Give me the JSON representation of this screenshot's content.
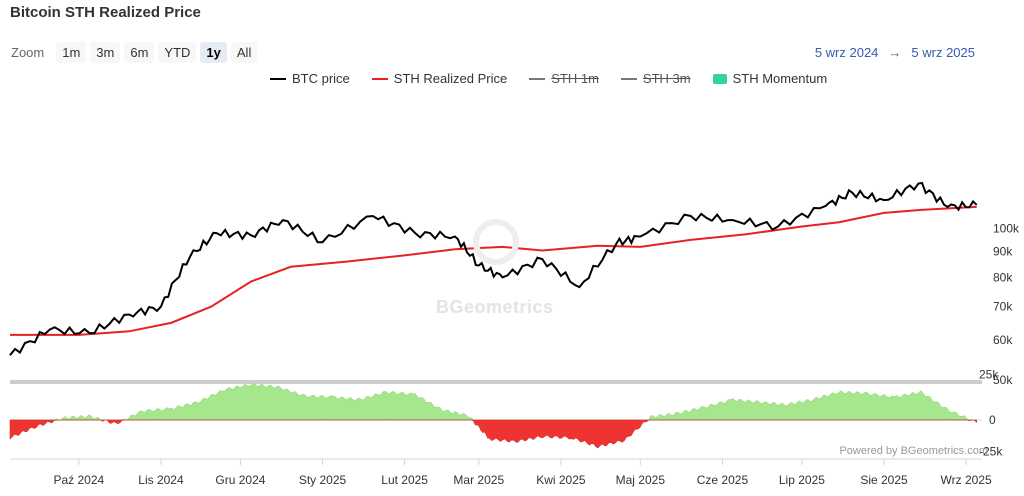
{
  "title": "Bitcoin STH Realized Price",
  "zoom": {
    "label": "Zoom",
    "buttons": [
      "1m",
      "3m",
      "6m",
      "YTD",
      "1y",
      "All"
    ],
    "active": "1y"
  },
  "range": {
    "from": "5 wrz 2024",
    "arrow": "→",
    "to": "5 wrz 2025"
  },
  "legend": [
    {
      "label": "BTC price",
      "color": "#000000",
      "kind": "line",
      "hidden": false
    },
    {
      "label": "STH Realized Price",
      "color": "#e62222",
      "kind": "line",
      "hidden": false
    },
    {
      "label": "STH 1m",
      "color": "#555555",
      "kind": "line",
      "hidden": true
    },
    {
      "label": "STH 3m",
      "color": "#555555",
      "kind": "line",
      "hidden": true
    },
    {
      "label": "STH Momentum",
      "color": "#34d399",
      "kind": "area",
      "hidden": false
    }
  ],
  "watermark": "BGeometrics",
  "credit": "Powered by BGeometrics.com",
  "colors": {
    "btc": "#000000",
    "sth": "#e62222",
    "mom_pos": "#a6e68c",
    "mom_neg": "#ee3333",
    "divider": "#cccccc"
  },
  "chart_data": {
    "type": "line",
    "title": "Bitcoin STH Realized Price",
    "x_ticks": [
      "Paź 2024",
      "Lis 2024",
      "Gru 2024",
      "Sty 2025",
      "Lut 2025",
      "Mar 2025",
      "Kwi 2025",
      "Maj 2025",
      "Cze 2025",
      "Lip 2025",
      "Sie 2025",
      "Wrz 2025"
    ],
    "y_ticks": [
      "100k",
      "90k",
      "80k",
      "70k",
      "60k",
      "50k"
    ],
    "y_scale": "log",
    "ylim": [
      50000,
      125000
    ],
    "lower_y_ticks": [
      "25k",
      "0",
      "-25k"
    ],
    "lower_ylim": [
      -30000,
      30000
    ],
    "series": [
      {
        "name": "BTC price",
        "x": [
          "2024-09-05",
          "2024-09-20",
          "2024-10-05",
          "2024-10-20",
          "2024-11-01",
          "2024-11-12",
          "2024-11-22",
          "2024-12-05",
          "2024-12-17",
          "2025-01-01",
          "2025-01-20",
          "2025-02-05",
          "2025-02-20",
          "2025-03-01",
          "2025-03-10",
          "2025-03-25",
          "2025-04-08",
          "2025-04-22",
          "2025-05-01",
          "2025-05-20",
          "2025-06-05",
          "2025-06-22",
          "2025-07-10",
          "2025-07-20",
          "2025-08-01",
          "2025-08-14",
          "2025-08-25",
          "2025-09-05"
        ],
        "values": [
          56000,
          63000,
          62000,
          67500,
          70000,
          88000,
          98000,
          97000,
          104000,
          94000,
          106000,
          98000,
          96500,
          84500,
          80000,
          87000,
          76500,
          93500,
          96500,
          106000,
          104000,
          101000,
          111000,
          118000,
          114000,
          123000,
          110500,
          111500
        ]
      },
      {
        "name": "STH Realized Price",
        "x": [
          "2024-09-05",
          "2024-10-01",
          "2024-10-20",
          "2024-11-05",
          "2024-11-20",
          "2024-12-05",
          "2024-12-20",
          "2025-01-10",
          "2025-02-01",
          "2025-02-20",
          "2025-03-10",
          "2025-03-25",
          "2025-04-15",
          "2025-05-01",
          "2025-05-20",
          "2025-06-10",
          "2025-07-01",
          "2025-07-15",
          "2025-08-01",
          "2025-08-15",
          "2025-09-05"
        ],
        "values": [
          61500,
          61500,
          62500,
          65000,
          70000,
          78500,
          84000,
          86000,
          88500,
          91000,
          92000,
          90500,
          92500,
          92000,
          95000,
          97500,
          101000,
          103000,
          107500,
          109000,
          110500
        ]
      },
      {
        "name": "STH Momentum",
        "x": [
          "2024-09-05",
          "2024-09-15",
          "2024-09-25",
          "2024-10-05",
          "2024-10-15",
          "2024-10-25",
          "2024-11-05",
          "2024-11-15",
          "2024-11-25",
          "2024-12-05",
          "2024-12-15",
          "2024-12-25",
          "2025-01-05",
          "2025-01-15",
          "2025-01-25",
          "2025-02-05",
          "2025-02-15",
          "2025-02-25",
          "2025-03-05",
          "2025-03-15",
          "2025-03-25",
          "2025-04-05",
          "2025-04-15",
          "2025-04-25",
          "2025-05-05",
          "2025-05-15",
          "2025-05-25",
          "2025-06-05",
          "2025-06-15",
          "2025-06-25",
          "2025-07-05",
          "2025-07-15",
          "2025-07-25",
          "2025-08-05",
          "2025-08-15",
          "2025-08-25",
          "2025-09-05"
        ],
        "values": [
          -14000,
          -5000,
          1500,
          3000,
          -3000,
          7000,
          9000,
          14000,
          24000,
          28000,
          26000,
          19000,
          18000,
          16000,
          22000,
          20000,
          8000,
          3500,
          -15000,
          -17000,
          -13000,
          -14000,
          -21000,
          -16000,
          2500,
          5000,
          10000,
          16000,
          14000,
          12000,
          16000,
          22000,
          21000,
          18000,
          22000,
          8000,
          -2000
        ]
      }
    ]
  }
}
